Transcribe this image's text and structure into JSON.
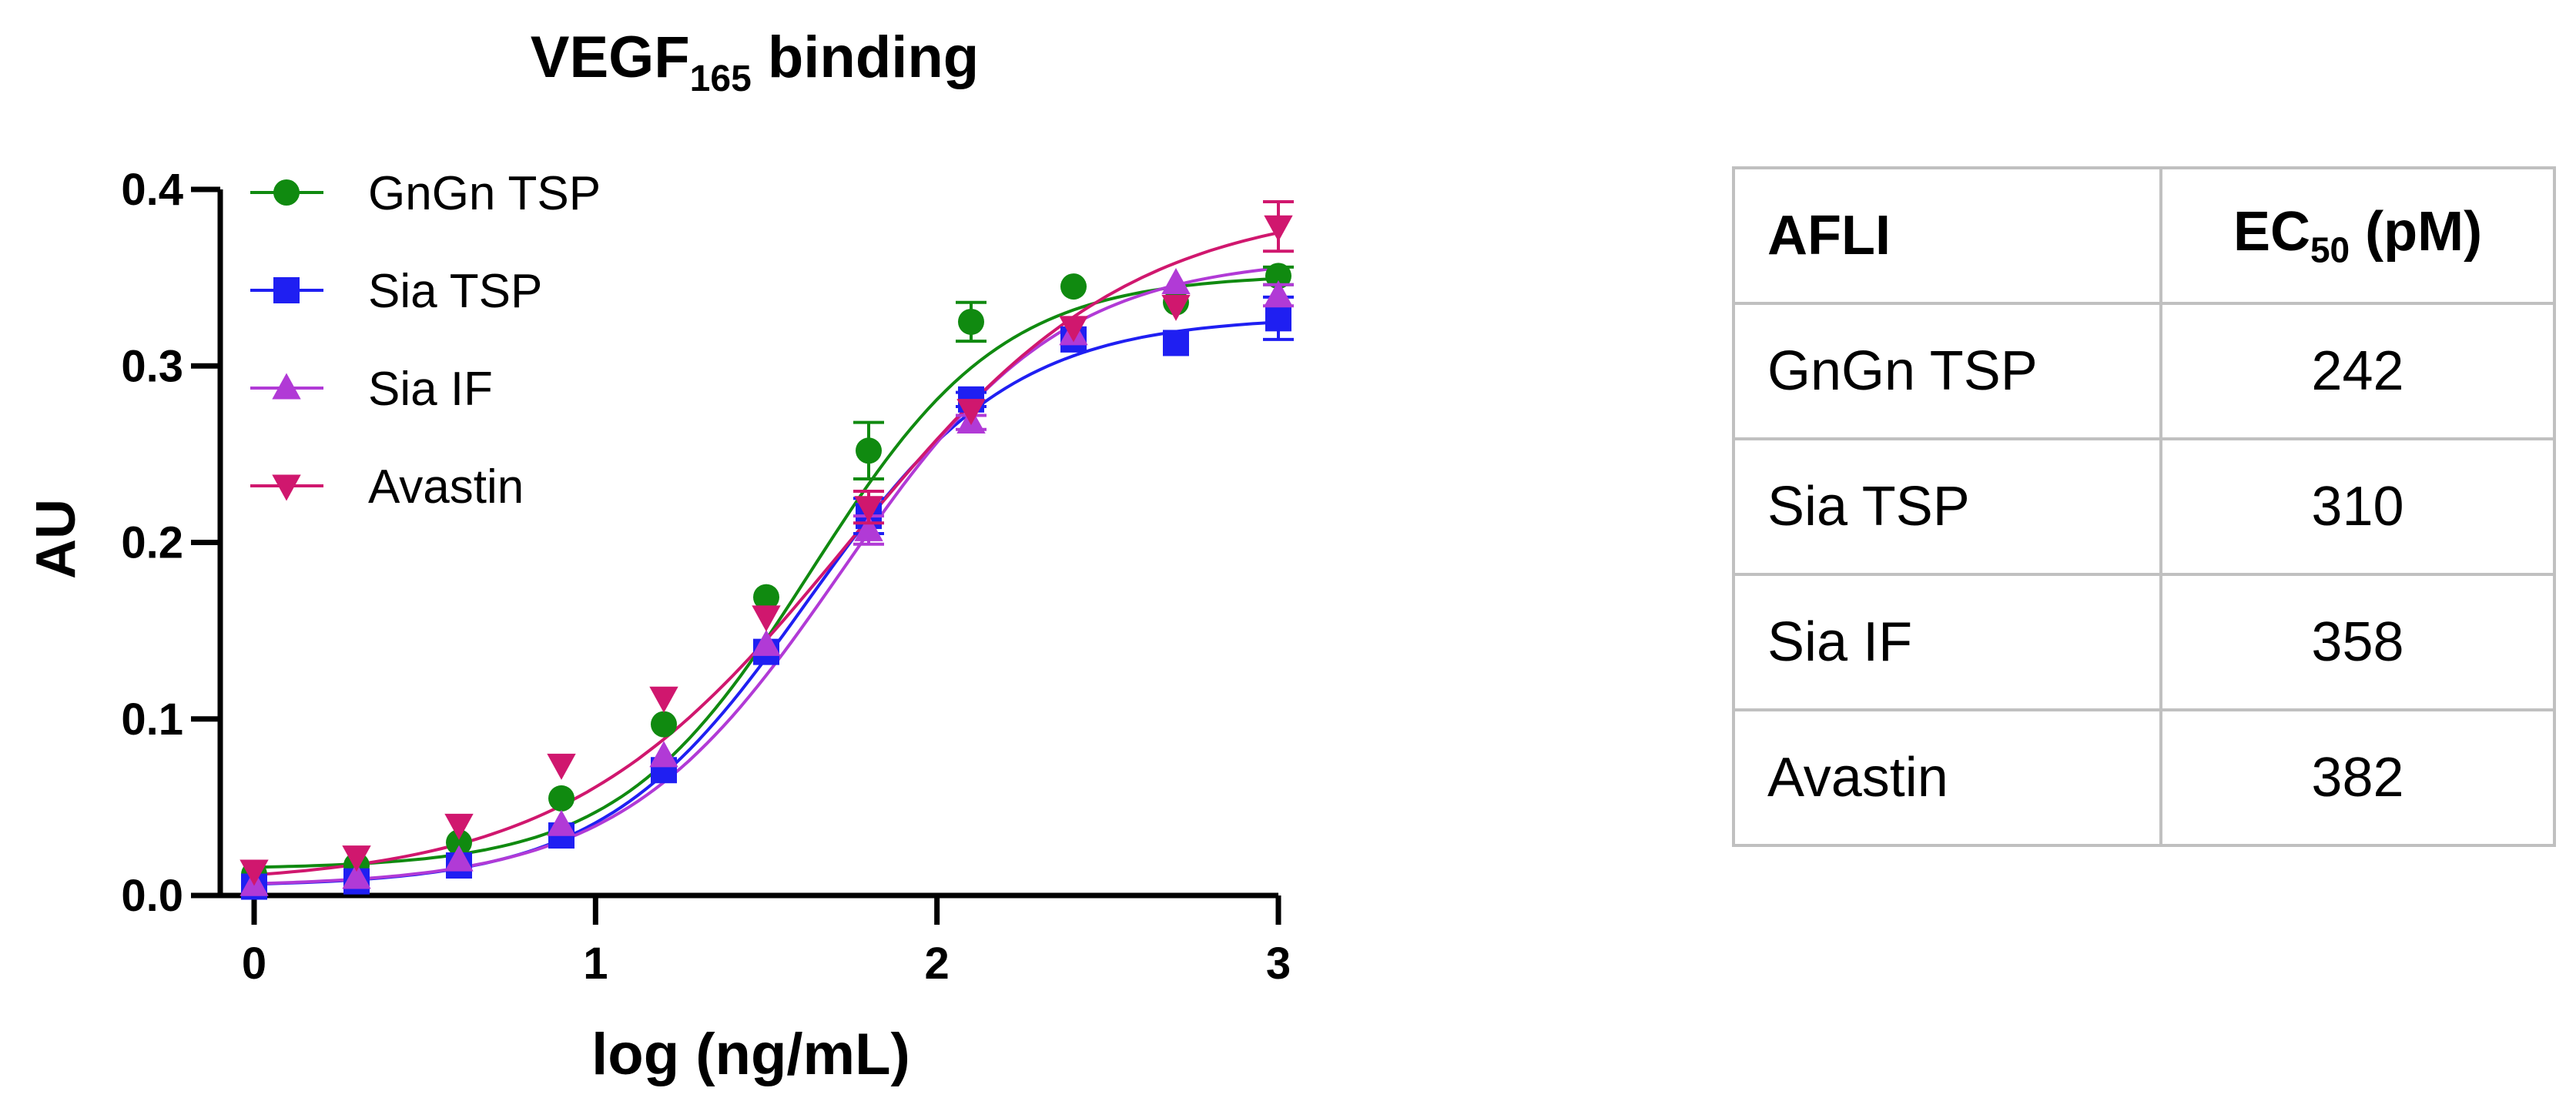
{
  "chart_data": {
    "type": "line",
    "title": "VEGF",
    "title_sub": "165",
    "title_suffix": " binding",
    "xlabel": "log (ng/mL)",
    "ylabel": "AU",
    "xlim": [
      0,
      3
    ],
    "ylim": [
      0,
      0.4
    ],
    "xticks": [
      0,
      1,
      2,
      3
    ],
    "xtick_labels": [
      "0",
      "1",
      "2",
      "3"
    ],
    "yticks": [
      0,
      0.1,
      0.2,
      0.3,
      0.4
    ],
    "ytick_labels": [
      "0.0",
      "0.1",
      "0.2",
      "0.3",
      "0.4"
    ],
    "legend_position": "top-left",
    "x": [
      0,
      0.3,
      0.6,
      0.9,
      1.2,
      1.5,
      1.8,
      2.1,
      2.4,
      2.7,
      3.0
    ],
    "series": [
      {
        "name": "GnGn TSP",
        "color": "#108a10",
        "marker": "circle",
        "values": [
          0.012,
          0.017,
          0.03,
          0.055,
          0.097,
          0.169,
          0.252,
          0.325,
          0.345,
          0.336,
          0.351
        ],
        "errors": [
          0,
          0,
          0,
          0,
          0,
          0,
          0.016,
          0.011,
          0,
          0,
          0.005
        ],
        "fit": {
          "bottom": 0.015,
          "top": 0.352,
          "log_ec50": 1.63,
          "hill": 1.55
        }
      },
      {
        "name": "Sia TSP",
        "color": "#1f1ff2",
        "marker": "square",
        "values": [
          0.005,
          0.008,
          0.017,
          0.034,
          0.071,
          0.138,
          0.215,
          0.281,
          0.315,
          0.313,
          0.327
        ],
        "errors": [
          0,
          0,
          0,
          0,
          0,
          0,
          0.01,
          0.004,
          0,
          0,
          0.012
        ],
        "fit": {
          "bottom": 0.005,
          "top": 0.328,
          "log_ec50": 1.62,
          "hill": 1.45
        }
      },
      {
        "name": "Sia IF",
        "color": "#b13ad6",
        "marker": "triangle-up",
        "values": [
          0.006,
          0.01,
          0.02,
          0.04,
          0.079,
          0.142,
          0.207,
          0.268,
          0.318,
          0.347,
          0.34
        ],
        "errors": [
          0,
          0,
          0,
          0,
          0,
          0,
          0.008,
          0.004,
          0,
          0,
          0.006
        ],
        "fit": {
          "bottom": 0.005,
          "top": 0.362,
          "log_ec50": 1.72,
          "hill": 1.35
        }
      },
      {
        "name": "Avastin",
        "color": "#d0176e",
        "marker": "triangle-down",
        "values": [
          0.014,
          0.022,
          0.04,
          0.074,
          0.112,
          0.158,
          0.22,
          0.275,
          0.322,
          0.334,
          0.379
        ],
        "errors": [
          0,
          0,
          0,
          0,
          0,
          0,
          0.009,
          0,
          0,
          0,
          0.014
        ],
        "fit": {
          "bottom": 0.006,
          "top": 0.393,
          "log_ec50": 1.74,
          "hill": 1.05
        }
      }
    ]
  },
  "table": {
    "header_col1": "AFLI",
    "header_col2_prefix": "EC",
    "header_col2_sub": "50",
    "header_col2_suffix": " (pM)",
    "rows": [
      {
        "name": "GnGn TSP",
        "ec50": "242"
      },
      {
        "name": "Sia TSP",
        "ec50": "310"
      },
      {
        "name": "Sia IF",
        "ec50": "358"
      },
      {
        "name": "Avastin",
        "ec50": "382"
      }
    ]
  }
}
